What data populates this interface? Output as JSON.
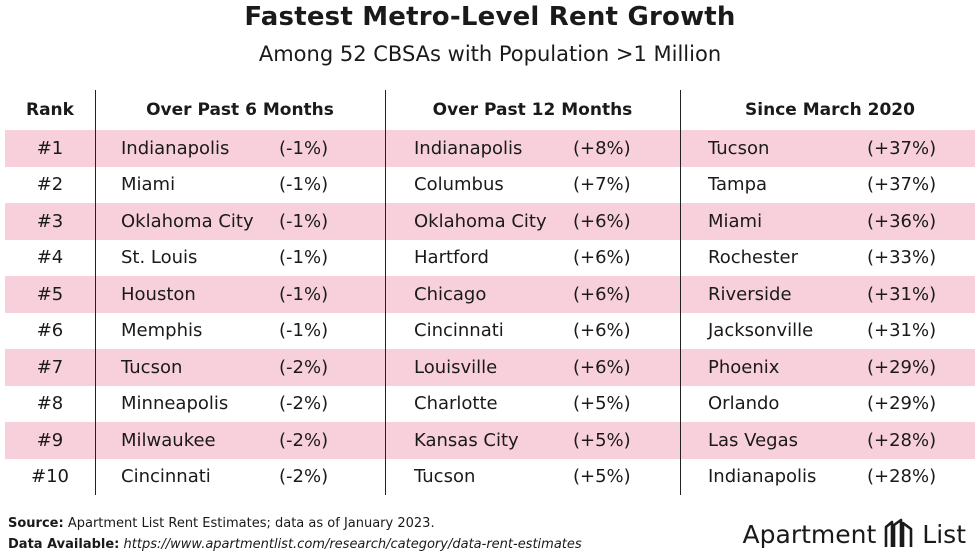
{
  "title": "Fastest Metro-Level Rent Growth",
  "subtitle": "Among 52 CBSAs with Population >1 Million",
  "headers": {
    "rank": "Rank",
    "col1": "Over Past 6 Months",
    "col2": "Over Past 12 Months",
    "col3": "Since March 2020"
  },
  "rows": [
    {
      "rank": "#1",
      "c1_city": "Indianapolis",
      "c1_val": "(-1%)",
      "c2_city": "Indianapolis",
      "c2_val": "(+8%)",
      "c3_city": "Tucson",
      "c3_val": "(+37%)"
    },
    {
      "rank": "#2",
      "c1_city": "Miami",
      "c1_val": "(-1%)",
      "c2_city": "Columbus",
      "c2_val": "(+7%)",
      "c3_city": "Tampa",
      "c3_val": "(+37%)"
    },
    {
      "rank": "#3",
      "c1_city": "Oklahoma City",
      "c1_val": "(-1%)",
      "c2_city": "Oklahoma City",
      "c2_val": "(+6%)",
      "c3_city": "Miami",
      "c3_val": "(+36%)"
    },
    {
      "rank": "#4",
      "c1_city": "St. Louis",
      "c1_val": "(-1%)",
      "c2_city": "Hartford",
      "c2_val": "(+6%)",
      "c3_city": "Rochester",
      "c3_val": "(+33%)"
    },
    {
      "rank": "#5",
      "c1_city": "Houston",
      "c1_val": "(-1%)",
      "c2_city": "Chicago",
      "c2_val": "(+6%)",
      "c3_city": "Riverside",
      "c3_val": "(+31%)"
    },
    {
      "rank": "#6",
      "c1_city": "Memphis",
      "c1_val": "(-1%)",
      "c2_city": "Cincinnati",
      "c2_val": "(+6%)",
      "c3_city": "Jacksonville",
      "c3_val": "(+31%)"
    },
    {
      "rank": "#7",
      "c1_city": "Tucson",
      "c1_val": "(-2%)",
      "c2_city": "Louisville",
      "c2_val": "(+6%)",
      "c3_city": "Phoenix",
      "c3_val": "(+29%)"
    },
    {
      "rank": "#8",
      "c1_city": "Minneapolis",
      "c1_val": "(-2%)",
      "c2_city": "Charlotte",
      "c2_val": "(+5%)",
      "c3_city": "Orlando",
      "c3_val": "(+29%)"
    },
    {
      "rank": "#9",
      "c1_city": "Milwaukee",
      "c1_val": "(-2%)",
      "c2_city": "Kansas City",
      "c2_val": "(+5%)",
      "c3_city": "Las Vegas",
      "c3_val": "(+28%)"
    },
    {
      "rank": "#10",
      "c1_city": "Cincinnati",
      "c1_val": "(-2%)",
      "c2_city": "Tucson",
      "c2_val": "(+5%)",
      "c3_city": "Indianapolis",
      "c3_val": "(+28%)"
    }
  ],
  "footer": {
    "source_label": "Source:",
    "source_text": "Apartment List Rent Estimates; data as of January 2023.",
    "available_label": "Data Available:",
    "available_url": "https://www.apartmentlist.com/research/category/data-rent-estimates"
  },
  "brand": {
    "name_left": "Apartment",
    "name_right": "List"
  },
  "colors": {
    "stripe": "#f8d0dc",
    "text": "#1a1a1a"
  }
}
